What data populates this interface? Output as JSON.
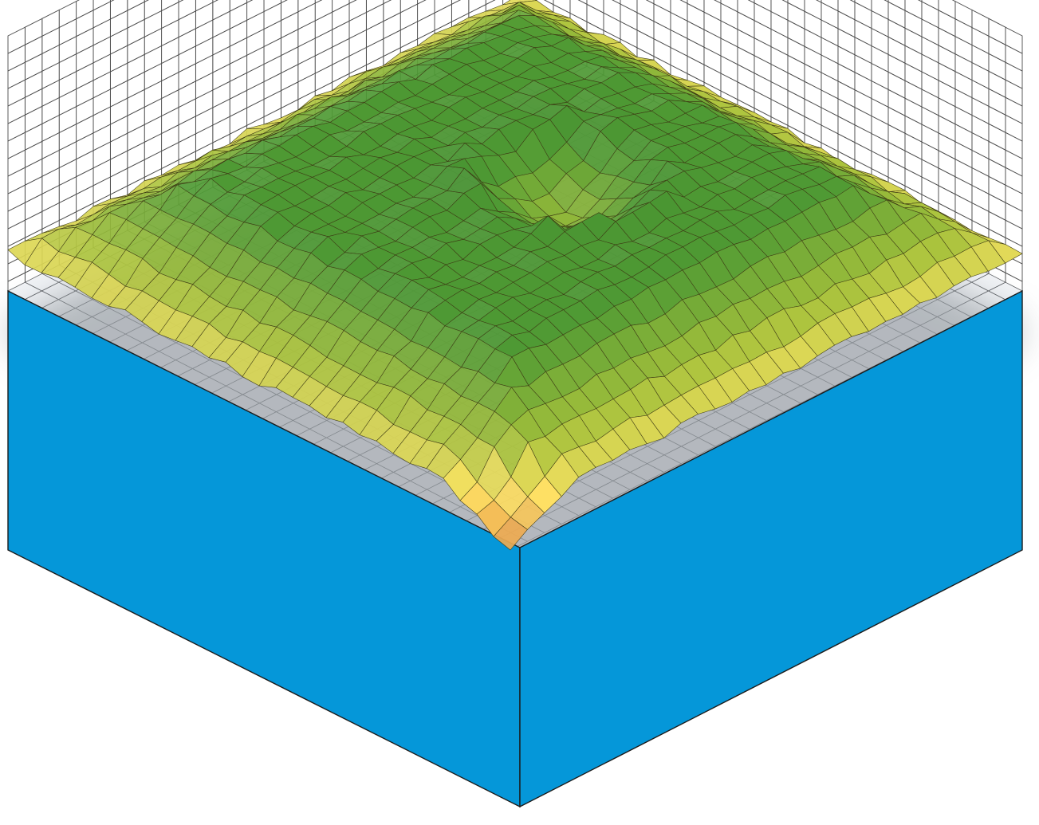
{
  "chart_data": {
    "type": "surface3d",
    "title": "",
    "xlabel": "",
    "ylabel": "",
    "zlabel": "",
    "grid": true,
    "projection": "isometric",
    "base_block": true,
    "wall_grid_columns": 30,
    "wall_grid_rows": 15,
    "floor_grid_cells": 30,
    "surface_grid_cells": 30,
    "relief_description_values": {
      "plateau_level": 0.7,
      "edge_level": 0.25,
      "front_corner_level": 0.0,
      "central_depression_level": 0.42
    },
    "color_scale": [
      {
        "level": 0.0,
        "color": "#e8954a"
      },
      {
        "level": 0.2,
        "color": "#ffe566"
      },
      {
        "level": 0.4,
        "color": "#a8c23c"
      },
      {
        "level": 0.7,
        "color": "#4f9a34"
      },
      {
        "level": 1.0,
        "color": "#3f8b2e"
      }
    ]
  },
  "colors": {
    "base_side": "#0597d9",
    "wall_line": "#4a4a4a",
    "floor_line": "#55585c",
    "shadow": "#9aa0a6",
    "background": "#ffffff"
  }
}
